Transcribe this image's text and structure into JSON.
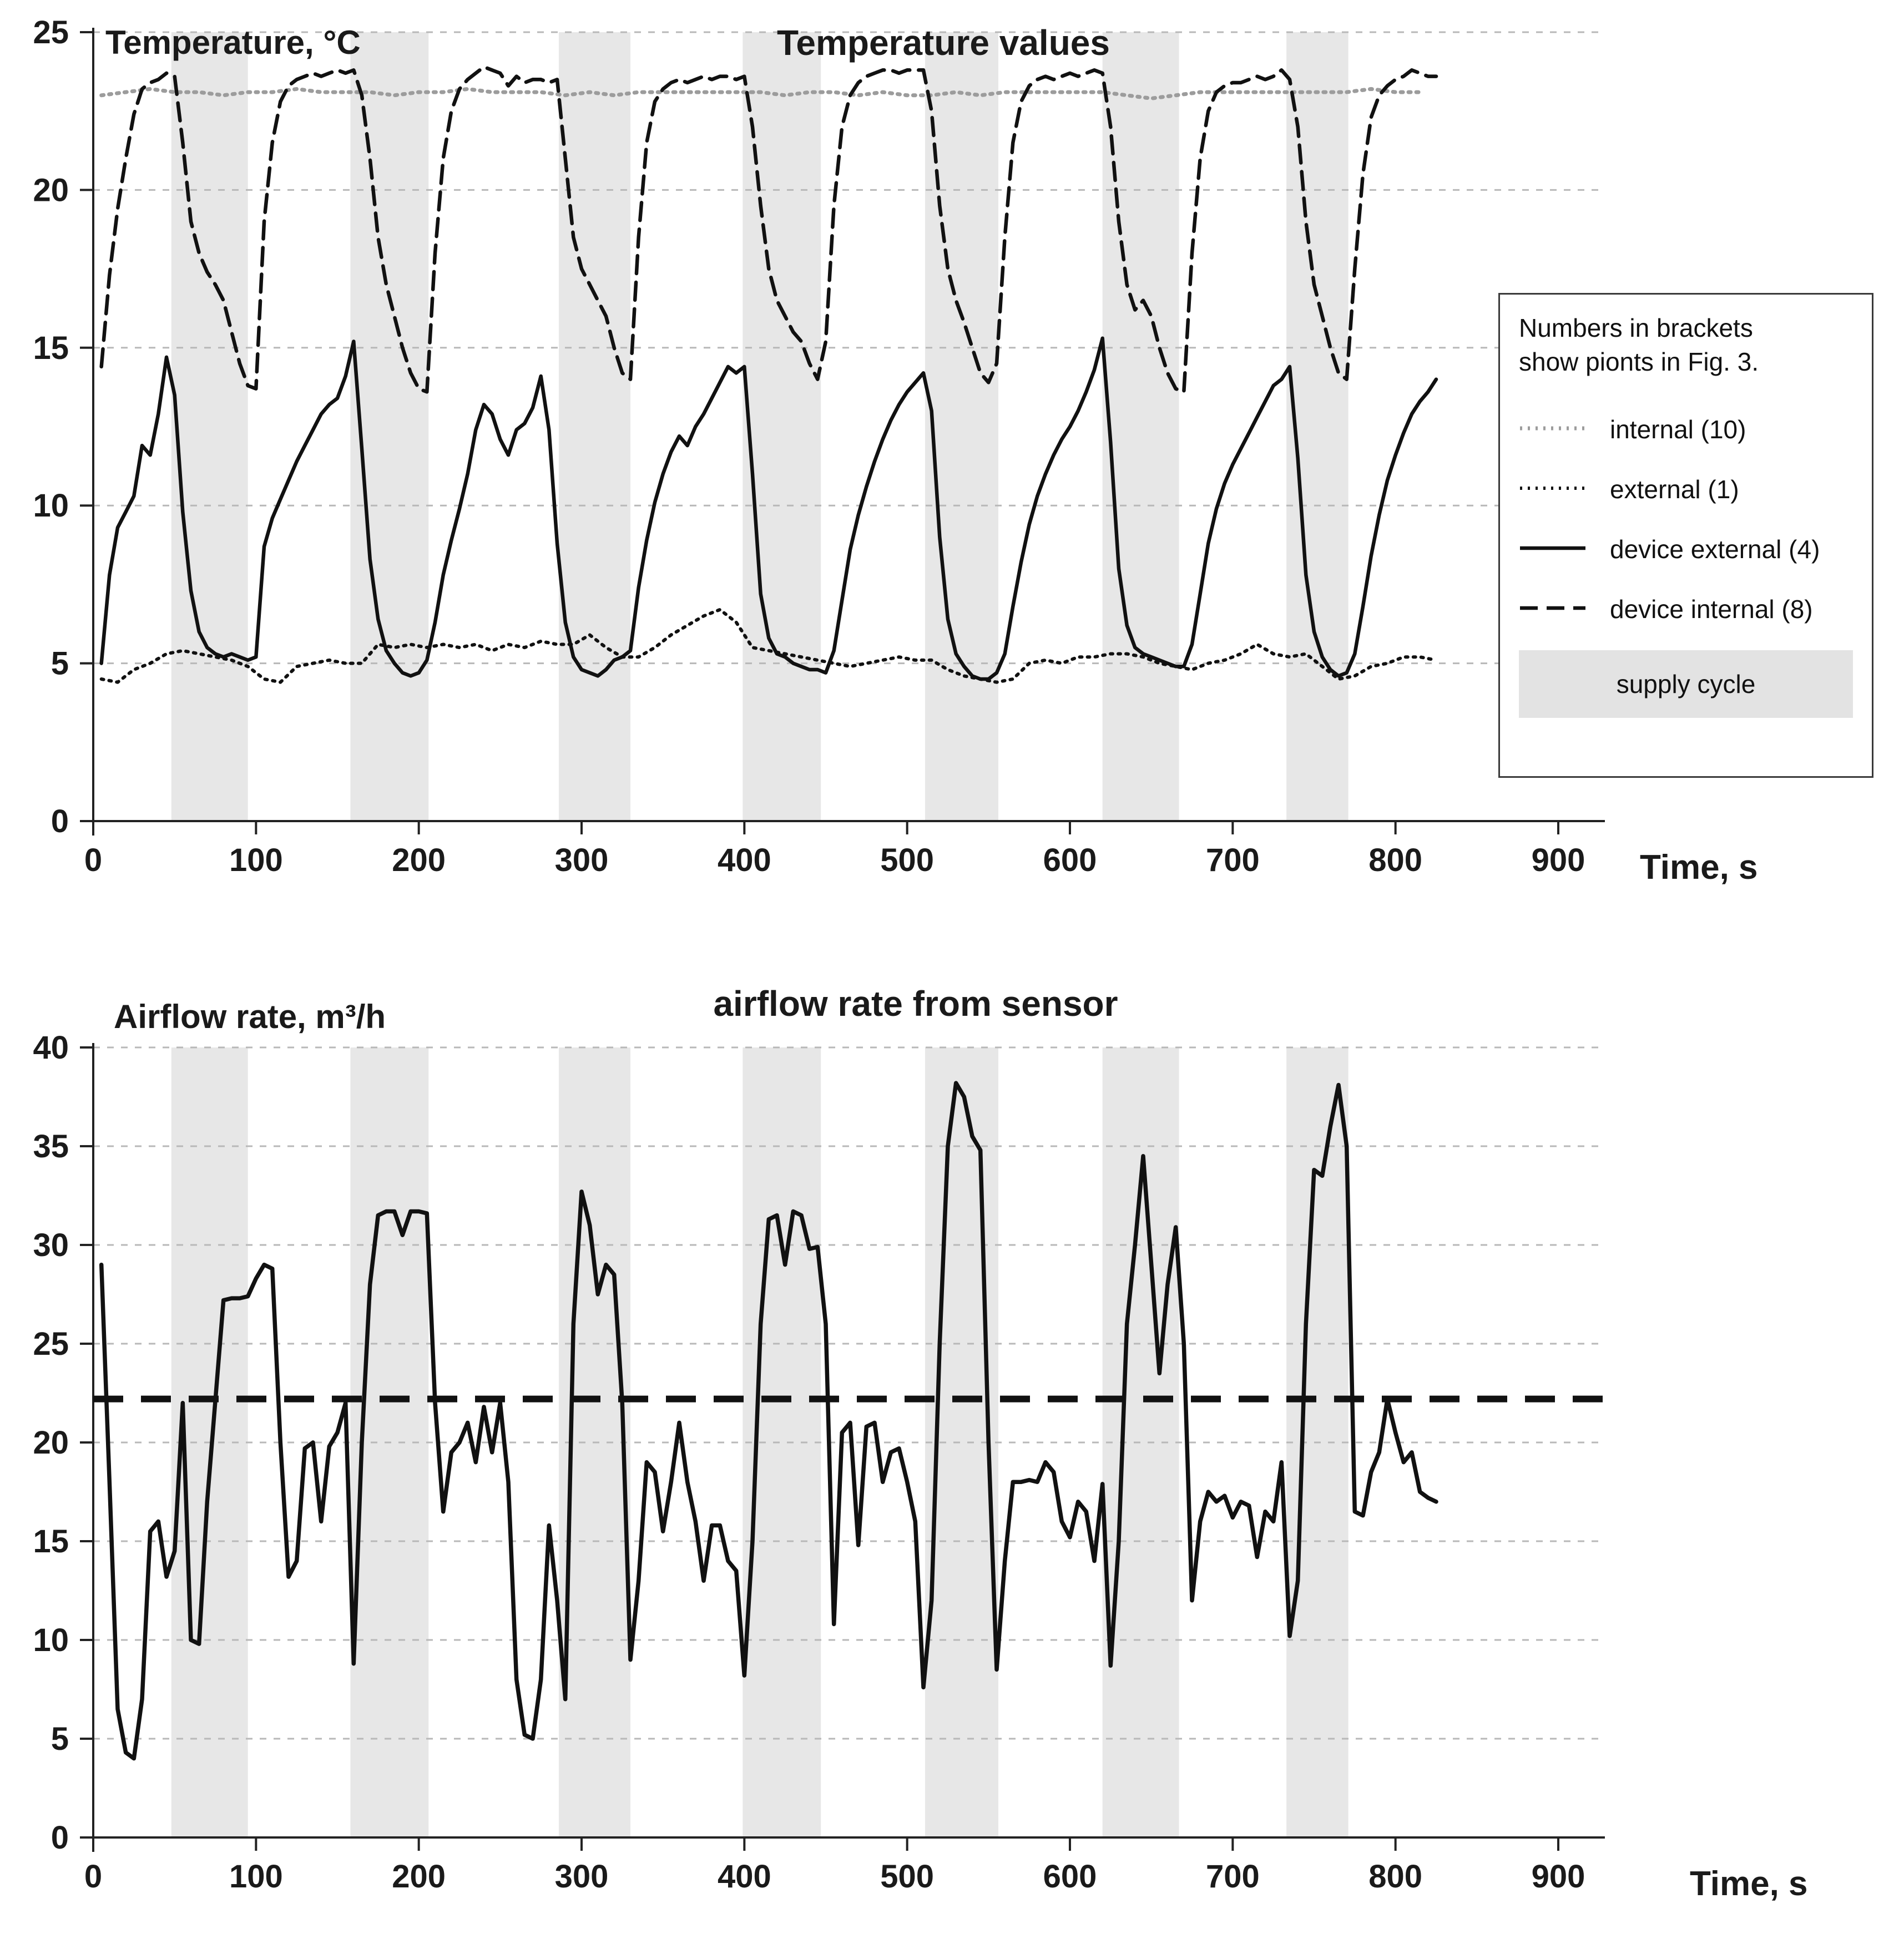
{
  "charts": {
    "temperature": {
      "title": "Temperature values",
      "ylabel": "Temperature, °C",
      "xlabel": "Time, s"
    },
    "airflow": {
      "title": "airflow rate from sensor",
      "ylabel": "Airflow rate, m³/h",
      "xlabel": "Time, s"
    }
  },
  "legend": {
    "note_line1": "Numbers in brackets",
    "note_line2": "show pionts in Fig. 3.",
    "entries": [
      {
        "label": "internal (10)",
        "style": "dotted-gray"
      },
      {
        "label": "external (1)",
        "style": "dotted"
      },
      {
        "label": "device external (4)",
        "style": "solid"
      },
      {
        "label": "device internal (8)",
        "style": "dashed"
      },
      {
        "label": "supply cycle",
        "style": "band"
      }
    ]
  },
  "colors": {
    "band": "#e7e7e7",
    "grid": "#b8b8b8",
    "axis": "#222222",
    "line_black": "#111111",
    "line_gray": "#9c9c9c"
  },
  "chart_data": [
    {
      "type": "line",
      "title": "Temperature values",
      "ylabel": "Temperature, °C",
      "xlabel": "Time, s",
      "xlim": [
        0,
        900
      ],
      "ylim": [
        0,
        25
      ],
      "xticks": [
        0,
        100,
        200,
        300,
        400,
        500,
        600,
        700,
        800,
        900
      ],
      "yticks": [
        0,
        5,
        10,
        15,
        20,
        25
      ],
      "grid": "dashed-horizontal",
      "legend_position": "right",
      "supply_cycle_bands": [
        [
          48,
          95
        ],
        [
          158,
          206
        ],
        [
          286,
          330
        ],
        [
          399,
          447
        ],
        [
          511,
          556
        ],
        [
          620,
          667
        ],
        [
          733,
          771
        ]
      ],
      "series": [
        {
          "name": "internal (10)",
          "style": "dotted-gray",
          "t_start": 5,
          "t_step": 15,
          "v": [
            23.0,
            23.1,
            23.2,
            23.1,
            23.1,
            23.0,
            23.1,
            23.1,
            23.2,
            23.1,
            23.1,
            23.1,
            23.0,
            23.1,
            23.1,
            23.2,
            23.1,
            23.1,
            23.1,
            23.0,
            23.1,
            23.0,
            23.1,
            23.1,
            23.1,
            23.1,
            23.1,
            23.1,
            23.0,
            23.1,
            23.1,
            23.0,
            23.1,
            23.0,
            23.0,
            23.1,
            23.0,
            23.1,
            23.1,
            23.1,
            23.1,
            23.1,
            23.0,
            22.9,
            23.0,
            23.1,
            23.1,
            23.1,
            23.1,
            23.1,
            23.1,
            23.1,
            23.2,
            23.1,
            23.1
          ]
        },
        {
          "name": "external (1)",
          "style": "dotted",
          "t_start": 5,
          "t_step": 10,
          "v": [
            4.5,
            4.4,
            4.8,
            5.0,
            5.3,
            5.4,
            5.3,
            5.2,
            5.1,
            4.9,
            4.5,
            4.4,
            4.9,
            5.0,
            5.1,
            5.0,
            5.0,
            5.6,
            5.5,
            5.6,
            5.5,
            5.6,
            5.5,
            5.6,
            5.4,
            5.6,
            5.5,
            5.7,
            5.6,
            5.6,
            5.9,
            5.5,
            5.2,
            5.2,
            5.5,
            5.9,
            6.2,
            6.5,
            6.7,
            6.3,
            5.5,
            5.4,
            5.3,
            5.2,
            5.1,
            5.0,
            4.9,
            5.0,
            5.1,
            5.2,
            5.1,
            5.1,
            4.8,
            4.6,
            4.5,
            4.4,
            4.5,
            5.0,
            5.1,
            5.0,
            5.2,
            5.2,
            5.3,
            5.3,
            5.2,
            5.0,
            4.9,
            4.8,
            5.0,
            5.1,
            5.3,
            5.6,
            5.3,
            5.2,
            5.3,
            4.9,
            4.5,
            4.6,
            4.9,
            5.0,
            5.2,
            5.2,
            5.1
          ]
        },
        {
          "name": "device external (4)",
          "style": "solid",
          "t_start": 5,
          "t_step": 5,
          "v": [
            5.0,
            7.8,
            9.3,
            9.8,
            10.3,
            11.9,
            11.6,
            12.9,
            14.7,
            13.5,
            9.8,
            7.3,
            6.0,
            5.5,
            5.3,
            5.2,
            5.3,
            5.2,
            5.1,
            5.2,
            8.7,
            9.6,
            10.2,
            10.8,
            11.4,
            11.9,
            12.4,
            12.9,
            13.2,
            13.4,
            14.1,
            15.2,
            11.8,
            8.3,
            6.4,
            5.4,
            5.0,
            4.7,
            4.6,
            4.7,
            5.1,
            6.3,
            7.8,
            8.9,
            9.9,
            11.0,
            12.4,
            13.2,
            12.9,
            12.1,
            11.6,
            12.4,
            12.6,
            13.1,
            14.1,
            12.4,
            8.8,
            6.3,
            5.2,
            4.8,
            4.7,
            4.6,
            4.8,
            5.1,
            5.2,
            5.4,
            7.4,
            8.9,
            10.1,
            11.0,
            11.7,
            12.2,
            11.9,
            12.5,
            12.9,
            13.4,
            13.9,
            14.4,
            14.2,
            14.4,
            11.0,
            7.2,
            5.8,
            5.3,
            5.2,
            5.0,
            4.9,
            4.8,
            4.8,
            4.7,
            5.4,
            7.0,
            8.6,
            9.7,
            10.6,
            11.4,
            12.1,
            12.7,
            13.2,
            13.6,
            13.9,
            14.2,
            13.0,
            9.0,
            6.4,
            5.3,
            4.9,
            4.6,
            4.5,
            4.5,
            4.7,
            5.3,
            6.8,
            8.2,
            9.4,
            10.3,
            11.0,
            11.6,
            12.1,
            12.5,
            13.0,
            13.6,
            14.3,
            15.3,
            12.0,
            8.0,
            6.2,
            5.5,
            5.3,
            5.2,
            5.1,
            5.0,
            4.9,
            4.9,
            5.6,
            7.2,
            8.8,
            9.9,
            10.7,
            11.3,
            11.8,
            12.3,
            12.8,
            13.3,
            13.8,
            14.0,
            14.4,
            11.5,
            7.8,
            6.0,
            5.2,
            4.8,
            4.6,
            4.7,
            5.3,
            6.8,
            8.4,
            9.7,
            10.8,
            11.6,
            12.3,
            12.9,
            13.3,
            13.6,
            14.0
          ]
        },
        {
          "name": "device internal (8)",
          "style": "dashed",
          "t_start": 5,
          "t_step": 5,
          "v": [
            14.4,
            17.3,
            19.4,
            21.0,
            22.4,
            23.2,
            23.4,
            23.5,
            23.7,
            23.6,
            21.5,
            19.0,
            18.0,
            17.4,
            17.0,
            16.5,
            15.5,
            14.5,
            13.8,
            13.7,
            19.0,
            21.5,
            22.8,
            23.3,
            23.5,
            23.6,
            23.7,
            23.6,
            23.7,
            23.8,
            23.7,
            23.8,
            23.0,
            21.0,
            18.5,
            17.0,
            16.0,
            15.0,
            14.2,
            13.7,
            13.6,
            18.0,
            21.0,
            22.5,
            23.2,
            23.5,
            23.7,
            23.9,
            23.8,
            23.7,
            23.3,
            23.6,
            23.4,
            23.5,
            23.5,
            23.4,
            23.5,
            21.0,
            18.5,
            17.5,
            17.0,
            16.5,
            16.0,
            15.0,
            14.2,
            14.0,
            18.5,
            21.5,
            22.8,
            23.2,
            23.4,
            23.5,
            23.4,
            23.5,
            23.6,
            23.5,
            23.6,
            23.6,
            23.5,
            23.6,
            22.0,
            19.5,
            17.5,
            16.5,
            16.0,
            15.5,
            15.2,
            14.5,
            14.0,
            15.2,
            19.5,
            22.0,
            23.0,
            23.4,
            23.6,
            23.7,
            23.8,
            23.8,
            23.7,
            23.8,
            23.8,
            23.8,
            22.5,
            19.5,
            17.5,
            16.5,
            15.8,
            15.0,
            14.2,
            13.9,
            14.5,
            18.5,
            21.5,
            22.8,
            23.3,
            23.5,
            23.6,
            23.5,
            23.6,
            23.7,
            23.6,
            23.7,
            23.8,
            23.7,
            22.0,
            19.0,
            17.0,
            16.2,
            16.5,
            16.0,
            15.0,
            14.2,
            13.7,
            13.6,
            18.0,
            21.0,
            22.5,
            23.1,
            23.3,
            23.4,
            23.4,
            23.5,
            23.6,
            23.5,
            23.6,
            23.8,
            23.5,
            22.0,
            19.0,
            17.0,
            16.0,
            15.0,
            14.2,
            14.0,
            17.5,
            20.5,
            22.3,
            23.0,
            23.3,
            23.5,
            23.6,
            23.8,
            23.7,
            23.6,
            23.6
          ]
        }
      ]
    },
    {
      "type": "line",
      "title": "airflow rate from sensor",
      "ylabel": "Airflow rate, m³/h",
      "xlabel": "Time, s",
      "xlim": [
        0,
        900
      ],
      "ylim": [
        0,
        40
      ],
      "xticks": [
        0,
        100,
        200,
        300,
        400,
        500,
        600,
        700,
        800,
        900
      ],
      "yticks": [
        0,
        5,
        10,
        15,
        20,
        25,
        30,
        35,
        40
      ],
      "grid": "dashed-horizontal",
      "supply_cycle_bands": [
        [
          48,
          95
        ],
        [
          158,
          206
        ],
        [
          286,
          330
        ],
        [
          399,
          447
        ],
        [
          511,
          556
        ],
        [
          620,
          667
        ],
        [
          733,
          771
        ]
      ],
      "reference_line": {
        "value": 22.2,
        "style": "dashed"
      },
      "series": [
        {
          "name": "airflow from sensor",
          "style": "solid-thick",
          "t_start": 5,
          "t_step": 5,
          "v": [
            29.0,
            18.0,
            6.5,
            4.3,
            4.0,
            7.0,
            15.5,
            16.0,
            13.2,
            14.5,
            22.0,
            10.0,
            9.8,
            17.0,
            22.1,
            27.2,
            27.3,
            27.3,
            27.4,
            28.3,
            29.0,
            28.8,
            20.0,
            13.2,
            14.0,
            19.7,
            20.0,
            16.0,
            19.8,
            20.5,
            22.0,
            8.8,
            20.0,
            28.0,
            31.5,
            31.7,
            31.7,
            30.5,
            31.7,
            31.7,
            31.6,
            22.0,
            16.5,
            19.5,
            20.0,
            21.0,
            19.0,
            21.8,
            19.5,
            22.0,
            18.0,
            8.0,
            5.2,
            5.0,
            8.0,
            15.8,
            12.0,
            7.0,
            26.0,
            32.7,
            31.0,
            27.5,
            29.0,
            28.5,
            22.0,
            9.0,
            13.0,
            19.0,
            18.5,
            15.5,
            18.0,
            21.0,
            18.0,
            16.0,
            13.0,
            15.8,
            15.8,
            14.0,
            13.5,
            8.2,
            15.0,
            26.0,
            31.3,
            31.5,
            29.0,
            31.7,
            31.5,
            29.8,
            29.9,
            26.0,
            10.8,
            20.5,
            21.0,
            14.8,
            20.8,
            21.0,
            18.0,
            19.5,
            19.7,
            18.0,
            16.0,
            7.6,
            12.0,
            25.0,
            35.0,
            38.2,
            37.5,
            35.5,
            34.8,
            20.0,
            8.5,
            14.0,
            18.0,
            18.0,
            18.1,
            18.0,
            19.0,
            18.5,
            16.0,
            15.2,
            17.0,
            16.5,
            14.0,
            17.9,
            8.7,
            15.0,
            26.0,
            30.0,
            34.5,
            29.0,
            23.5,
            28.0,
            30.9,
            25.0,
            12.0,
            16.0,
            17.5,
            17.0,
            17.3,
            16.2,
            17.0,
            16.8,
            14.2,
            16.5,
            16.0,
            19.0,
            10.2,
            13.0,
            26.0,
            33.8,
            33.5,
            36.0,
            38.1,
            35.0,
            16.5,
            16.3,
            18.5,
            19.5,
            22.2,
            20.5,
            19.0,
            19.5,
            17.5,
            17.2,
            17.0
          ]
        }
      ]
    }
  ]
}
